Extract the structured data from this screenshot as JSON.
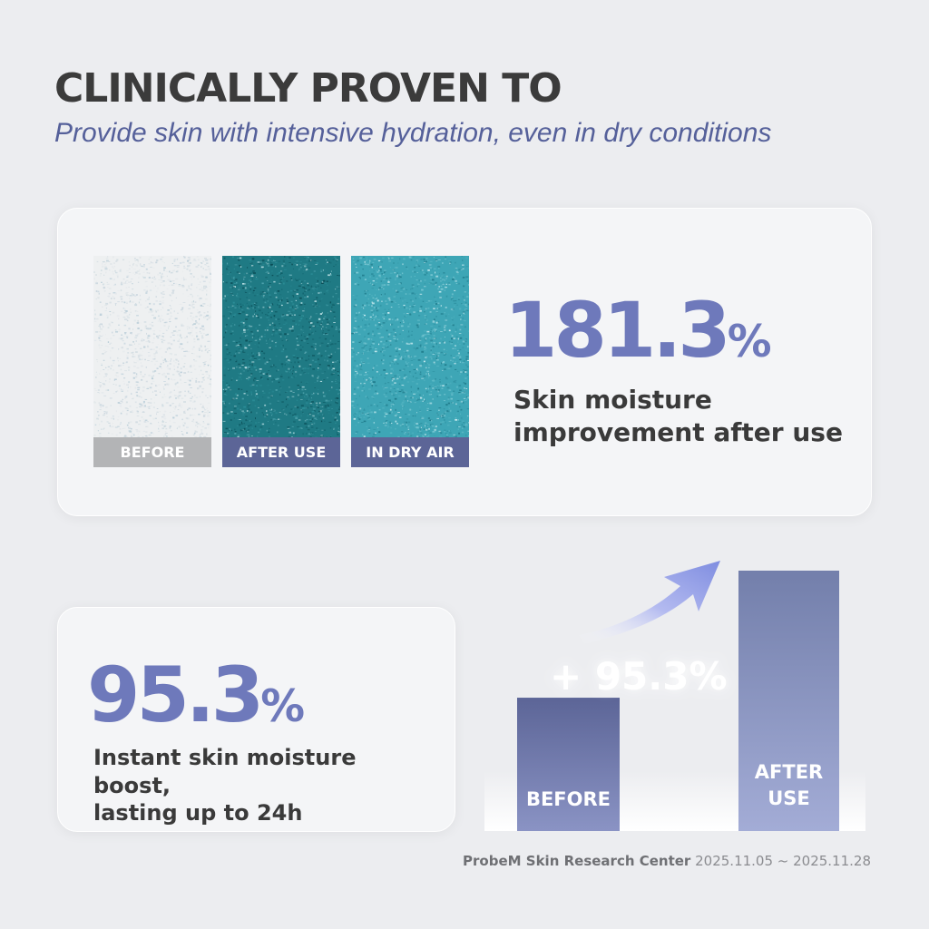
{
  "header": {
    "title": "CLINICALLY PROVEN TO",
    "subtitle": "Provide skin with intensive hydration, even in dry conditions"
  },
  "colors": {
    "accent": "#6e79bb",
    "caption_dark": "#5c6597",
    "caption_gray": "#b3b4b6",
    "teal_dark": "#1e7d86",
    "teal_light": "#3fa8b8"
  },
  "moisture_panel": {
    "swatches": [
      {
        "label": "BEFORE",
        "texture": "pale-gray-skin-texture"
      },
      {
        "label": "AFTER USE",
        "texture": "dark-teal-skin-texture"
      },
      {
        "label": "IN DRY AIR",
        "texture": "light-teal-skin-texture"
      }
    ],
    "stat_value": "181.3",
    "stat_unit": "%",
    "stat_desc_line1": "Skin moisture",
    "stat_desc_line2": "improvement after use"
  },
  "boost_panel": {
    "stat_value": "95.3",
    "stat_unit": "%",
    "stat_desc_line1": "Instant skin moisture boost,",
    "stat_desc_line2": "lasting up to 24h"
  },
  "chart_data": {
    "type": "bar",
    "categories": [
      "BEFORE",
      "AFTER USE"
    ],
    "values": [
      100,
      195.3
    ],
    "annotation_label": "+ 95.3%",
    "arrow_icon": "curved-up-arrow-icon"
  },
  "footer": {
    "organization": "ProbeM Skin Research Center",
    "period": "2025.11.05 ~ 2025.11.28"
  }
}
